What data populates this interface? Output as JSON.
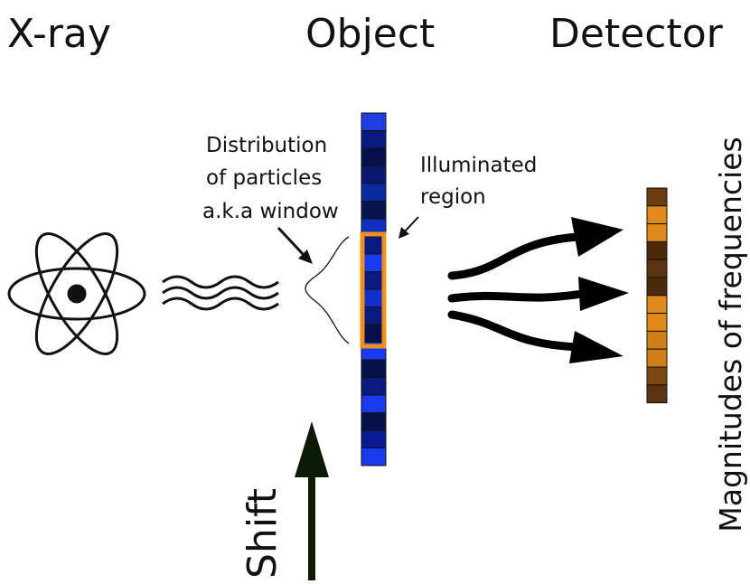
{
  "header": {
    "titles": [
      "X-ray",
      "Object",
      "Detector"
    ]
  },
  "labels": {
    "window": [
      "Distribution",
      "of particles",
      "a.k.a window"
    ],
    "illuminated": [
      "Illuminated",
      "region"
    ],
    "detector_axis": "Magnitudes of frequencies",
    "shift": "Shift"
  }
}
